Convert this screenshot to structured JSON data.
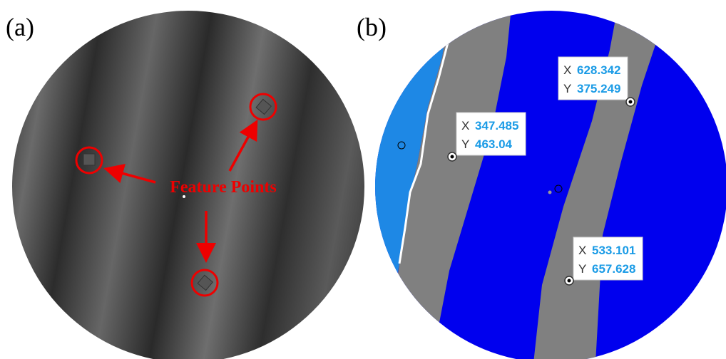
{
  "panel_a": {
    "label": "(a)",
    "annotation": "Feature Points"
  },
  "panel_b": {
    "label": "(b)",
    "datatips": [
      {
        "x_label": "X",
        "x": "347.485",
        "y_label": "Y",
        "y": "463.04"
      },
      {
        "x_label": "X",
        "x": "628.342",
        "y_label": "Y",
        "y": "375.249"
      },
      {
        "x_label": "X",
        "x": "533.101",
        "y_label": "Y",
        "y": "657.628"
      }
    ]
  }
}
